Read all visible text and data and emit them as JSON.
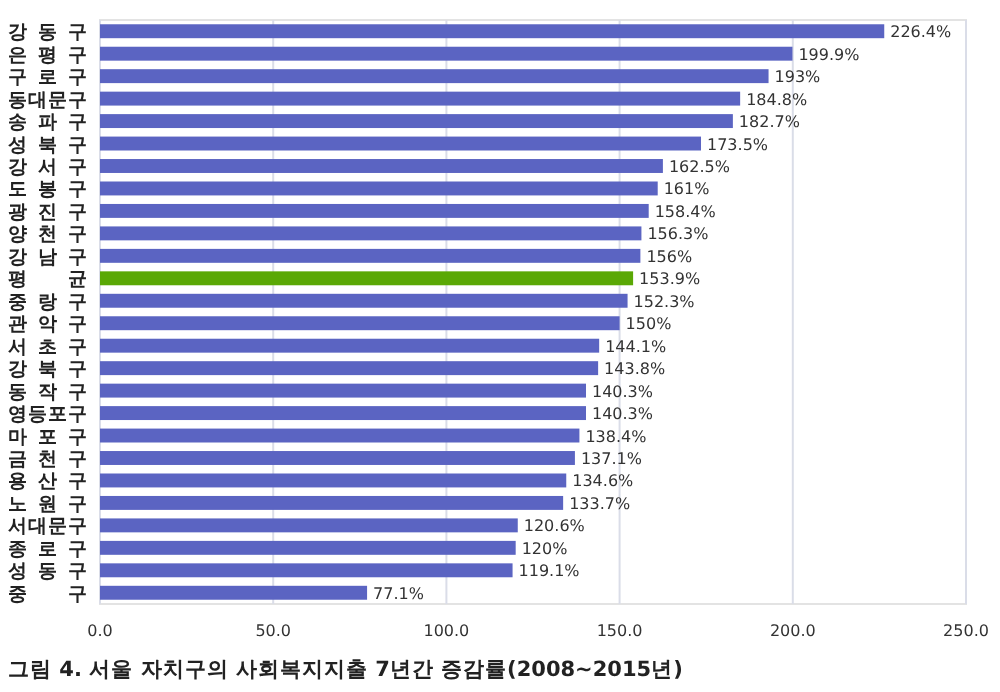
{
  "chart_data": {
    "type": "bar",
    "orientation": "horizontal",
    "title": "그림 4. 서울 자치구의 사회복지지출 7년간 증감률(2008~2015년)",
    "categories": [
      "강동구",
      "은평구",
      "구로구",
      "동대문구",
      "송파구",
      "성북구",
      "강서구",
      "도봉구",
      "광진구",
      "양천구",
      "강남구",
      "평 균",
      "중랑구",
      "관악구",
      "서초구",
      "강북구",
      "동작구",
      "영등포구",
      "마포구",
      "금천구",
      "용산구",
      "노원구",
      "서대문구",
      "종로구",
      "성동구",
      "중 구"
    ],
    "values": [
      226.4,
      199.9,
      193,
      184.8,
      182.7,
      173.5,
      162.5,
      161,
      158.4,
      156.3,
      156,
      153.9,
      152.3,
      150,
      144.1,
      143.8,
      140.3,
      140.3,
      138.4,
      137.1,
      134.6,
      133.7,
      120.6,
      120,
      119.1,
      77.1
    ],
    "value_labels": [
      "226.4%",
      "199.9%",
      "193%",
      "184.8%",
      "182.7%",
      "173.5%",
      "162.5%",
      "161%",
      "158.4%",
      "156.3%",
      "156%",
      "153.9%",
      "152.3%",
      "150%",
      "144.1%",
      "143.8%",
      "140.3%",
      "140.3%",
      "138.4%",
      "137.1%",
      "134.6%",
      "133.7%",
      "120.6%",
      "120%",
      "119.1%",
      "77.1%"
    ],
    "colors": [
      "#5b64c2",
      "#5b64c2",
      "#5b64c2",
      "#5b64c2",
      "#5b64c2",
      "#5b64c2",
      "#5b64c2",
      "#5b64c2",
      "#5b64c2",
      "#5b64c2",
      "#5b64c2",
      "#5aa805",
      "#5b64c2",
      "#5b64c2",
      "#5b64c2",
      "#5b64c2",
      "#5b64c2",
      "#5b64c2",
      "#5b64c2",
      "#5b64c2",
      "#5b64c2",
      "#5b64c2",
      "#5b64c2",
      "#5b64c2",
      "#5b64c2",
      "#5b64c2"
    ],
    "xlim": [
      0,
      250
    ],
    "xticks": [
      {
        "value": 0,
        "label": "0.0"
      },
      {
        "value": 50,
        "label": "50.0"
      },
      {
        "value": 100,
        "label": "100.0"
      },
      {
        "value": 150,
        "label": "150.0"
      },
      {
        "value": 200,
        "label": "200.0"
      },
      {
        "value": 250,
        "label": "250.0"
      }
    ],
    "grid": "x"
  }
}
